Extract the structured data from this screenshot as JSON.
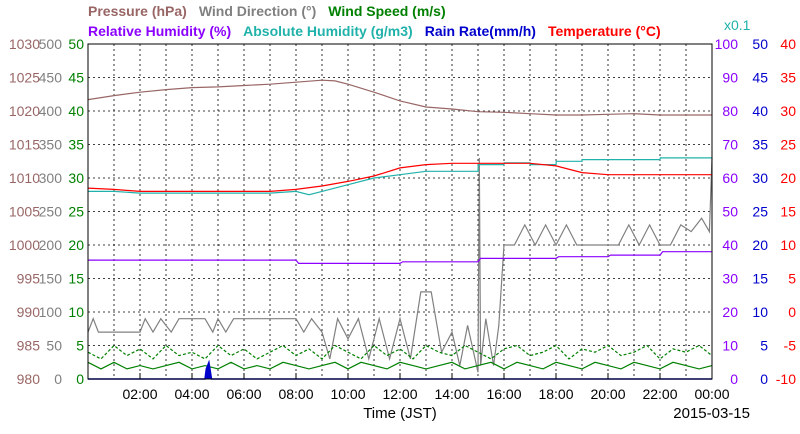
{
  "chart_data": {
    "type": "line",
    "date": "2015-03-15",
    "xlabel": "Time (JST)",
    "x_ticks": [
      "02:00",
      "04:00",
      "06:00",
      "08:00",
      "10:00",
      "12:00",
      "14:00",
      "16:00",
      "18:00",
      "20:00",
      "22:00",
      "00:00"
    ],
    "x_range_hours": [
      0,
      24
    ],
    "grid": true,
    "legend_row1": [
      {
        "label": "Pressure (hPa)",
        "color": "#996666"
      },
      {
        "label": "Wind Direction (°)",
        "color": "#808080"
      },
      {
        "label": "Wind Speed (m/s)",
        "color": "#008000"
      }
    ],
    "legend_row2": [
      {
        "label": "Relative Humidity (%)",
        "color": "#8B00FF"
      },
      {
        "label": "Absolute Humidity (g/m3)",
        "color": "#20B2AA"
      },
      {
        "label": "Rain Rate(mm/h)",
        "color": "#0000CC"
      },
      {
        "label": "Temperature (°C)",
        "color": "#FF0000"
      }
    ],
    "abs_humidity_multiplier": "x0.1",
    "axes": {
      "pressure": {
        "color": "#996666",
        "ticks": [
          "980",
          "985",
          "990",
          "995",
          "1000",
          "1005",
          "1010",
          "1015",
          "1020",
          "1025",
          "1030"
        ],
        "range": [
          980,
          1030
        ],
        "unit": "hPa"
      },
      "wind_direction": {
        "color": "#808080",
        "ticks": [
          "0",
          "50",
          "100",
          "150",
          "200",
          "250",
          "300",
          "350",
          "400",
          "450",
          "500"
        ],
        "range": [
          0,
          500
        ],
        "unit": "°"
      },
      "wind_speed": {
        "color": "#008000",
        "ticks": [
          "0",
          "5",
          "10",
          "15",
          "20",
          "25",
          "30",
          "35",
          "40",
          "45",
          "50"
        ],
        "range": [
          0,
          50
        ],
        "unit": "m/s"
      },
      "humidity": {
        "color": "#8B00FF",
        "ticks": [
          "0",
          "10",
          "20",
          "30",
          "40",
          "50",
          "60",
          "70",
          "80",
          "90",
          "100"
        ],
        "range": [
          0,
          100
        ],
        "unit": "%"
      },
      "rain_rate": {
        "color": "#0000CC",
        "ticks": [
          "0",
          "5",
          "10",
          "15",
          "20",
          "25",
          "30",
          "35",
          "40",
          "45",
          "50"
        ],
        "range": [
          0,
          50
        ],
        "unit": "mm/h"
      },
      "temperature": {
        "color": "#FF0000",
        "ticks": [
          "-10",
          "-5",
          "0",
          "5",
          "10",
          "15",
          "20",
          "25",
          "30",
          "35",
          "40"
        ],
        "range": [
          -10,
          40
        ],
        "unit": "°C"
      }
    },
    "series": [
      {
        "name": "Pressure",
        "unit": "hPa",
        "color": "#996666",
        "x": [
          0,
          1,
          2,
          3,
          4,
          5,
          6,
          7,
          8,
          9,
          9.5,
          10,
          11,
          12,
          13,
          14,
          15,
          16,
          17,
          18,
          19,
          20,
          21,
          22,
          23,
          24
        ],
        "y": [
          1021.7,
          1022.3,
          1022.8,
          1023.2,
          1023.5,
          1023.6,
          1023.8,
          1024,
          1024.3,
          1024.6,
          1024.5,
          1024,
          1022.8,
          1021.5,
          1020.6,
          1020.3,
          1019.9,
          1019.8,
          1019.6,
          1019.4,
          1019.4,
          1019.5,
          1019.6,
          1019.4,
          1019.4,
          1019.4
        ]
      },
      {
        "name": "Wind Direction",
        "unit": "°",
        "color": "#808080",
        "x": [
          0,
          0.2,
          0.4,
          2,
          2.2,
          2.5,
          2.8,
          3.2,
          3.5,
          4.5,
          4.8,
          5,
          5.3,
          5.6,
          6,
          7,
          8,
          8.3,
          8.6,
          9,
          9.3,
          9.6,
          10,
          10.4,
          10.8,
          11.2,
          11.6,
          12,
          12.4,
          12.8,
          13.2,
          13.6,
          14,
          14.3,
          14.6,
          15,
          15.05,
          15.1,
          15.3,
          15.6,
          15.8,
          16,
          16.4,
          16.8,
          17.2,
          17.6,
          18,
          18.4,
          18.8,
          19.2,
          19.6,
          20,
          20.4,
          20.8,
          21.2,
          21.6,
          22,
          22.4,
          22.8,
          23.2,
          23.6,
          23.9,
          24
        ],
        "y": [
          70,
          90,
          70,
          70,
          90,
          70,
          90,
          70,
          90,
          90,
          70,
          90,
          70,
          90,
          90,
          90,
          90,
          70,
          90,
          70,
          30,
          90,
          60,
          90,
          30,
          90,
          30,
          90,
          30,
          130,
          130,
          40,
          70,
          20,
          80,
          10,
          330,
          20,
          90,
          20,
          80,
          200,
          200,
          230,
          200,
          230,
          200,
          230,
          200,
          200,
          200,
          200,
          200,
          230,
          200,
          230,
          200,
          200,
          230,
          220,
          240,
          220,
          330
        ]
      },
      {
        "name": "Wind Speed",
        "unit": "m/s",
        "color": "#008000",
        "x": [
          0,
          0.5,
          1,
          1.5,
          2,
          2.5,
          3,
          3.5,
          4,
          4.5,
          5,
          5.5,
          6,
          6.5,
          7,
          7.5,
          8,
          8.5,
          9,
          9.5,
          10,
          10.5,
          11,
          11.5,
          12,
          12.5,
          13,
          13.5,
          14,
          14.5,
          15,
          15.5,
          16,
          16.5,
          17,
          17.5,
          18,
          18.5,
          19,
          19.5,
          20,
          20.5,
          21,
          21.5,
          22,
          22.5,
          23,
          23.5,
          24
        ],
        "y": [
          2.5,
          1.5,
          2.5,
          1.5,
          2,
          1.5,
          2,
          2.5,
          1.5,
          2,
          1.5,
          2.5,
          1.5,
          2,
          1.5,
          2.5,
          2,
          1.5,
          2,
          2.5,
          1.5,
          2.5,
          2,
          1.5,
          2.5,
          2,
          1.5,
          2,
          2.5,
          1.5,
          2,
          2.5,
          1.5,
          2.5,
          2,
          1.5,
          2.5,
          2,
          1.5,
          2.5,
          2,
          1.5,
          2.5,
          2,
          1.5,
          2.5,
          2,
          1.5,
          2
        ]
      },
      {
        "name": "Wind Speed Max",
        "unit": "m/s",
        "color": "#008000",
        "dashed": true,
        "x": [
          0,
          0.5,
          1,
          1.5,
          2,
          2.5,
          3,
          3.5,
          4,
          4.5,
          5,
          5.5,
          6,
          6.5,
          7,
          7.5,
          8,
          8.5,
          9,
          9.5,
          10,
          10.5,
          11,
          11.5,
          12,
          12.5,
          13,
          13.5,
          14,
          14.5,
          15,
          15.5,
          16,
          16.5,
          17,
          17.5,
          18,
          18.5,
          19,
          19.5,
          20,
          20.5,
          21,
          21.5,
          22,
          22.5,
          23,
          23.5,
          24
        ],
        "y": [
          4,
          3,
          5,
          3.5,
          4.5,
          3,
          5,
          3.5,
          4,
          3,
          5,
          3.5,
          4.5,
          3,
          4,
          5,
          3.5,
          4.5,
          3,
          5,
          4,
          3,
          5,
          3.5,
          4.5,
          3,
          5,
          4,
          3.5,
          5,
          4,
          3,
          4.5,
          5,
          3.5,
          4,
          5,
          3,
          4.5,
          4,
          5,
          3.5,
          4,
          5,
          3,
          4.5,
          4,
          5,
          3.5
        ]
      },
      {
        "name": "Relative Humidity",
        "unit": "%",
        "color": "#8B00FF",
        "x": [
          0,
          8,
          8.1,
          12,
          12.1,
          15,
          15.1,
          18,
          18.1,
          20,
          20.1,
          22,
          22.1,
          24
        ],
        "y": [
          35.5,
          35.5,
          34.5,
          34.5,
          35,
          35,
          36,
          36,
          36.5,
          36.5,
          37,
          37,
          38,
          38
        ]
      },
      {
        "name": "Absolute Humidity x0.1",
        "unit": "g/m3",
        "color": "#20B2AA",
        "x": [
          0,
          1,
          2,
          3,
          4,
          5,
          6,
          7,
          8,
          8.5,
          9,
          10,
          11,
          12,
          13,
          14,
          15,
          15.01,
          16,
          16.01,
          17,
          17.01,
          18,
          18.01,
          19,
          19.01,
          20,
          20.01,
          22,
          22.01,
          24
        ],
        "y": [
          56,
          56,
          55.5,
          55.5,
          55.5,
          55.5,
          55.5,
          55.5,
          56,
          55,
          56,
          58,
          60,
          61,
          62,
          62,
          62,
          64,
          64,
          64.5,
          64.5,
          64,
          64,
          65,
          65,
          65.5,
          65.5,
          65.5,
          65.5,
          66,
          66
        ]
      },
      {
        "name": "Rain Rate",
        "unit": "mm/h",
        "color": "#0000CC",
        "x": [
          0,
          4.5,
          4.55,
          4.65,
          4.75,
          24
        ],
        "y": [
          0,
          0,
          1.5,
          2.5,
          0,
          0
        ]
      },
      {
        "name": "Temperature",
        "unit": "°C",
        "color": "#FF0000",
        "x": [
          0,
          1,
          2,
          3,
          4,
          5,
          6,
          7,
          8,
          9,
          10,
          11,
          12,
          13,
          14,
          15,
          16,
          17,
          18,
          19,
          20,
          21,
          22,
          23,
          24
        ],
        "y": [
          18.5,
          18.3,
          18,
          18,
          18,
          18,
          18,
          18,
          18.3,
          18.8,
          19.5,
          20.3,
          21.5,
          22,
          22.2,
          22.2,
          22.2,
          22.2,
          21.8,
          20.8,
          20.5,
          20.5,
          20.5,
          20.5,
          20.5
        ]
      }
    ]
  }
}
